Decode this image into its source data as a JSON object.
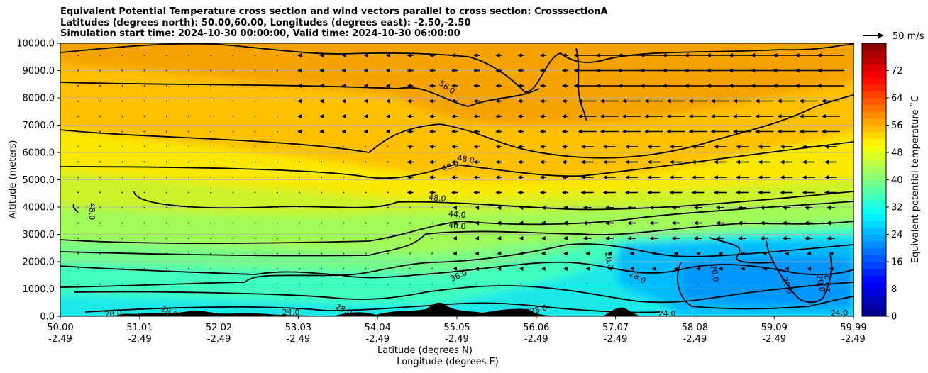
{
  "chart_data": {
    "type": "heatmap",
    "title_lines": [
      "Equivalent Potential Temperature cross section and wind vectors parallel to cross section: CrosssectionA",
      "Latitudes (degrees north): 50.00,60.00, Longitudes (degrees east): -2.50,-2.50",
      "Simulation start time: 2024-10-30 00:00:00, Valid time: 2024-10-30 06:00:00"
    ],
    "ylabel": "Altitude (meters)",
    "xlabel_lines": [
      "Latitude (degrees N)",
      "Longitude (degrees E)"
    ],
    "colorbar_label": "Equivalent potential temperature ˚C",
    "vector_key_label": "50 m/s",
    "ylim": [
      0,
      10000
    ],
    "xlim": [
      50.0,
      59.99
    ],
    "y_ticks": [
      {
        "value": 0,
        "label": "0.0"
      },
      {
        "value": 1000,
        "label": "1000.0"
      },
      {
        "value": 2000,
        "label": "2000.0"
      },
      {
        "value": 3000,
        "label": "3000.0"
      },
      {
        "value": 4000,
        "label": "4000.0"
      },
      {
        "value": 5000,
        "label": "5000.0"
      },
      {
        "value": 6000,
        "label": "6000.0"
      },
      {
        "value": 7000,
        "label": "7000.0"
      },
      {
        "value": 8000,
        "label": "8000.0"
      },
      {
        "value": 9000,
        "label": "9000.0"
      },
      {
        "value": 10000,
        "label": "10000.0"
      }
    ],
    "x_ticks": [
      {
        "lat": "50.00",
        "lon": "-2.49"
      },
      {
        "lat": "51.01",
        "lon": "-2.49"
      },
      {
        "lat": "52.02",
        "lon": "-2.49"
      },
      {
        "lat": "53.03",
        "lon": "-2.49"
      },
      {
        "lat": "54.04",
        "lon": "-2.49"
      },
      {
        "lat": "55.05",
        "lon": "-2.49"
      },
      {
        "lat": "56.06",
        "lon": "-2.49"
      },
      {
        "lat": "57.07",
        "lon": "-2.49"
      },
      {
        "lat": "58.08",
        "lon": "-2.49"
      },
      {
        "lat": "59.09",
        "lon": "-2.49"
      },
      {
        "lat": "59.99",
        "lon": "-2.49"
      }
    ],
    "colorbar_range": [
      0,
      80
    ],
    "colorbar_ticks": [
      "0",
      "8",
      "16",
      "24",
      "32",
      "40",
      "48",
      "56",
      "64",
      "72"
    ],
    "grid": "horizontal",
    "contour_labels": [
      "20.0",
      "24.0",
      "28.0",
      "36.0",
      "40.0",
      "44.0",
      "48.0",
      "56.0"
    ]
  }
}
